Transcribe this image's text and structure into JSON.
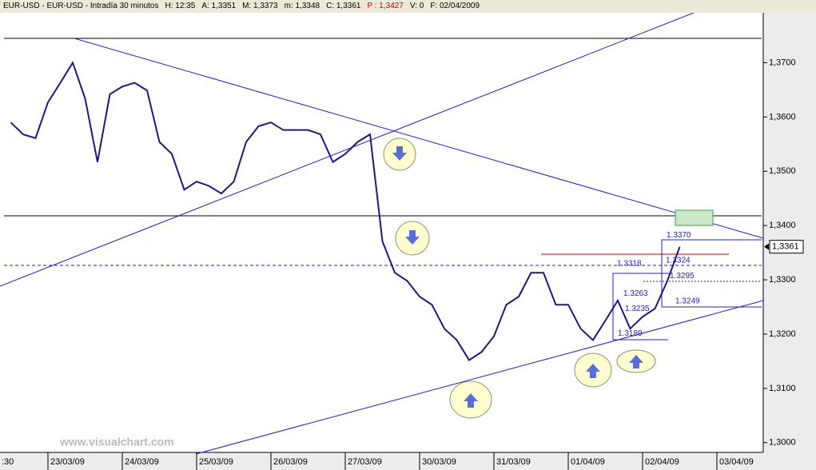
{
  "header": {
    "items": [
      {
        "text": "EUR-USD - EUR-USD - Intradía 30 minutos",
        "color": "#000000"
      },
      {
        "text": "H: 12:35",
        "color": "#000000"
      },
      {
        "text": "A: 1,3351",
        "color": "#000000"
      },
      {
        "text": "M: 1,3373",
        "color": "#000000"
      },
      {
        "text": "m: 1,3348",
        "color": "#000000"
      },
      {
        "text": "C: 1,3361",
        "color": "#000000"
      },
      {
        "text": "P : 1,3427",
        "color": "#d00000"
      },
      {
        "text": "V: 0",
        "color": "#000000"
      },
      {
        "text": "F: 02/04/2009",
        "color": "#000000"
      }
    ]
  },
  "chart_data": {
    "type": "line",
    "watermark": "www.visualchart.com",
    "x_cut_label": ":30",
    "categories": [
      null,
      null,
      null,
      null,
      "23/03/09",
      null,
      null,
      null,
      null,
      null,
      "24/03/09",
      null,
      null,
      null,
      null,
      null,
      "25/03/09",
      null,
      null,
      null,
      null,
      null,
      "26/03/09",
      null,
      null,
      null,
      null,
      null,
      "27/03/09",
      null,
      null,
      null,
      null,
      null,
      "30/03/09",
      null,
      null,
      null,
      null,
      null,
      "31/03/09",
      null,
      null,
      null,
      null,
      null,
      "01/04/09",
      null,
      null,
      null,
      null,
      null,
      "02/04/09",
      null,
      null,
      null,
      null,
      null,
      "03/04/09",
      null,
      null,
      null
    ],
    "series": [
      {
        "name": "EUR-USD",
        "color": "#1a1a80",
        "values": [
          null,
          1.359,
          1.3568,
          1.3561,
          1.3627,
          1.3663,
          1.37,
          1.3634,
          1.3517,
          1.3642,
          1.3656,
          1.3663,
          1.3649,
          1.3554,
          1.3532,
          1.3466,
          1.3481,
          1.3473,
          1.3459,
          1.3481,
          1.3554,
          1.3583,
          1.359,
          1.3576,
          1.3576,
          1.3576,
          1.3568,
          1.3517,
          1.3532,
          1.3554,
          1.3568,
          1.3371,
          1.3313,
          1.3298,
          1.3269,
          1.3254,
          1.321,
          1.3189,
          1.3152,
          1.3167,
          1.3196,
          1.3254,
          1.3269,
          1.3313,
          1.3313,
          1.3254,
          1.3254,
          1.321,
          1.3189,
          1.3225,
          1.3262,
          1.321,
          1.3232,
          1.3247,
          1.3298,
          1.3361,
          null,
          null,
          null,
          null,
          null,
          null
        ]
      }
    ],
    "ylim": [
      1.2982,
      1.3792
    ],
    "yticks": [
      {
        "value": 1.3,
        "label": "1,3000"
      },
      {
        "value": 1.31,
        "label": "1,3100"
      },
      {
        "value": 1.32,
        "label": "1,3200"
      },
      {
        "value": 1.33,
        "label": "1,3300"
      },
      {
        "value": 1.34,
        "label": "1,3400"
      },
      {
        "value": 1.35,
        "label": "1,3500"
      },
      {
        "value": 1.36,
        "label": "1,3600"
      },
      {
        "value": 1.37,
        "label": "1,3700"
      }
    ],
    "last_price": {
      "value": 1.3361,
      "label": "1,3361"
    },
    "annotations": [
      {
        "value": 1.337,
        "label": "1.3370"
      },
      {
        "value": 1.3324,
        "label": "1.3324"
      },
      {
        "value": 1.3318,
        "label": "1.3318"
      },
      {
        "value": 1.3295,
        "label": "1.3295"
      },
      {
        "value": 1.3263,
        "label": "1.3263"
      },
      {
        "value": 1.3235,
        "label": "1.3235"
      },
      {
        "value": 1.3249,
        "label": "1.3249"
      },
      {
        "value": 1.3189,
        "label": "1.3189"
      }
    ]
  }
}
